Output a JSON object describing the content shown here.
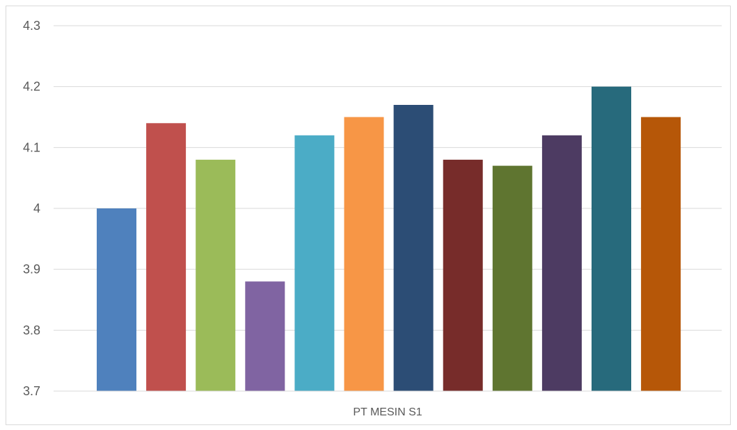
{
  "chart_data": {
    "type": "bar",
    "title": "",
    "xlabel": "",
    "ylabel": "",
    "categories": [
      "PT MESIN S1"
    ],
    "series": [
      {
        "values": [
          4.0
        ],
        "color": "#4F81BD"
      },
      {
        "values": [
          4.14
        ],
        "color": "#C0504D"
      },
      {
        "values": [
          4.08
        ],
        "color": "#9BBB59"
      },
      {
        "values": [
          3.88
        ],
        "color": "#8064A2"
      },
      {
        "values": [
          4.12
        ],
        "color": "#4BACC6"
      },
      {
        "values": [
          4.15
        ],
        "color": "#F79646"
      },
      {
        "values": [
          4.17
        ],
        "color": "#2C4D75"
      },
      {
        "values": [
          4.08
        ],
        "color": "#772C2A"
      },
      {
        "values": [
          4.07
        ],
        "color": "#5F7530"
      },
      {
        "values": [
          4.12
        ],
        "color": "#4D3B62"
      },
      {
        "values": [
          4.2
        ],
        "color": "#276A7C"
      },
      {
        "values": [
          4.15
        ],
        "color": "#B65708"
      }
    ],
    "ylim": [
      3.7,
      4.3
    ],
    "y_ticks": [
      "3.7",
      "3.8",
      "3.9",
      "4",
      "4.1",
      "4.2",
      "4.3"
    ],
    "grid": true,
    "legend": "none"
  }
}
